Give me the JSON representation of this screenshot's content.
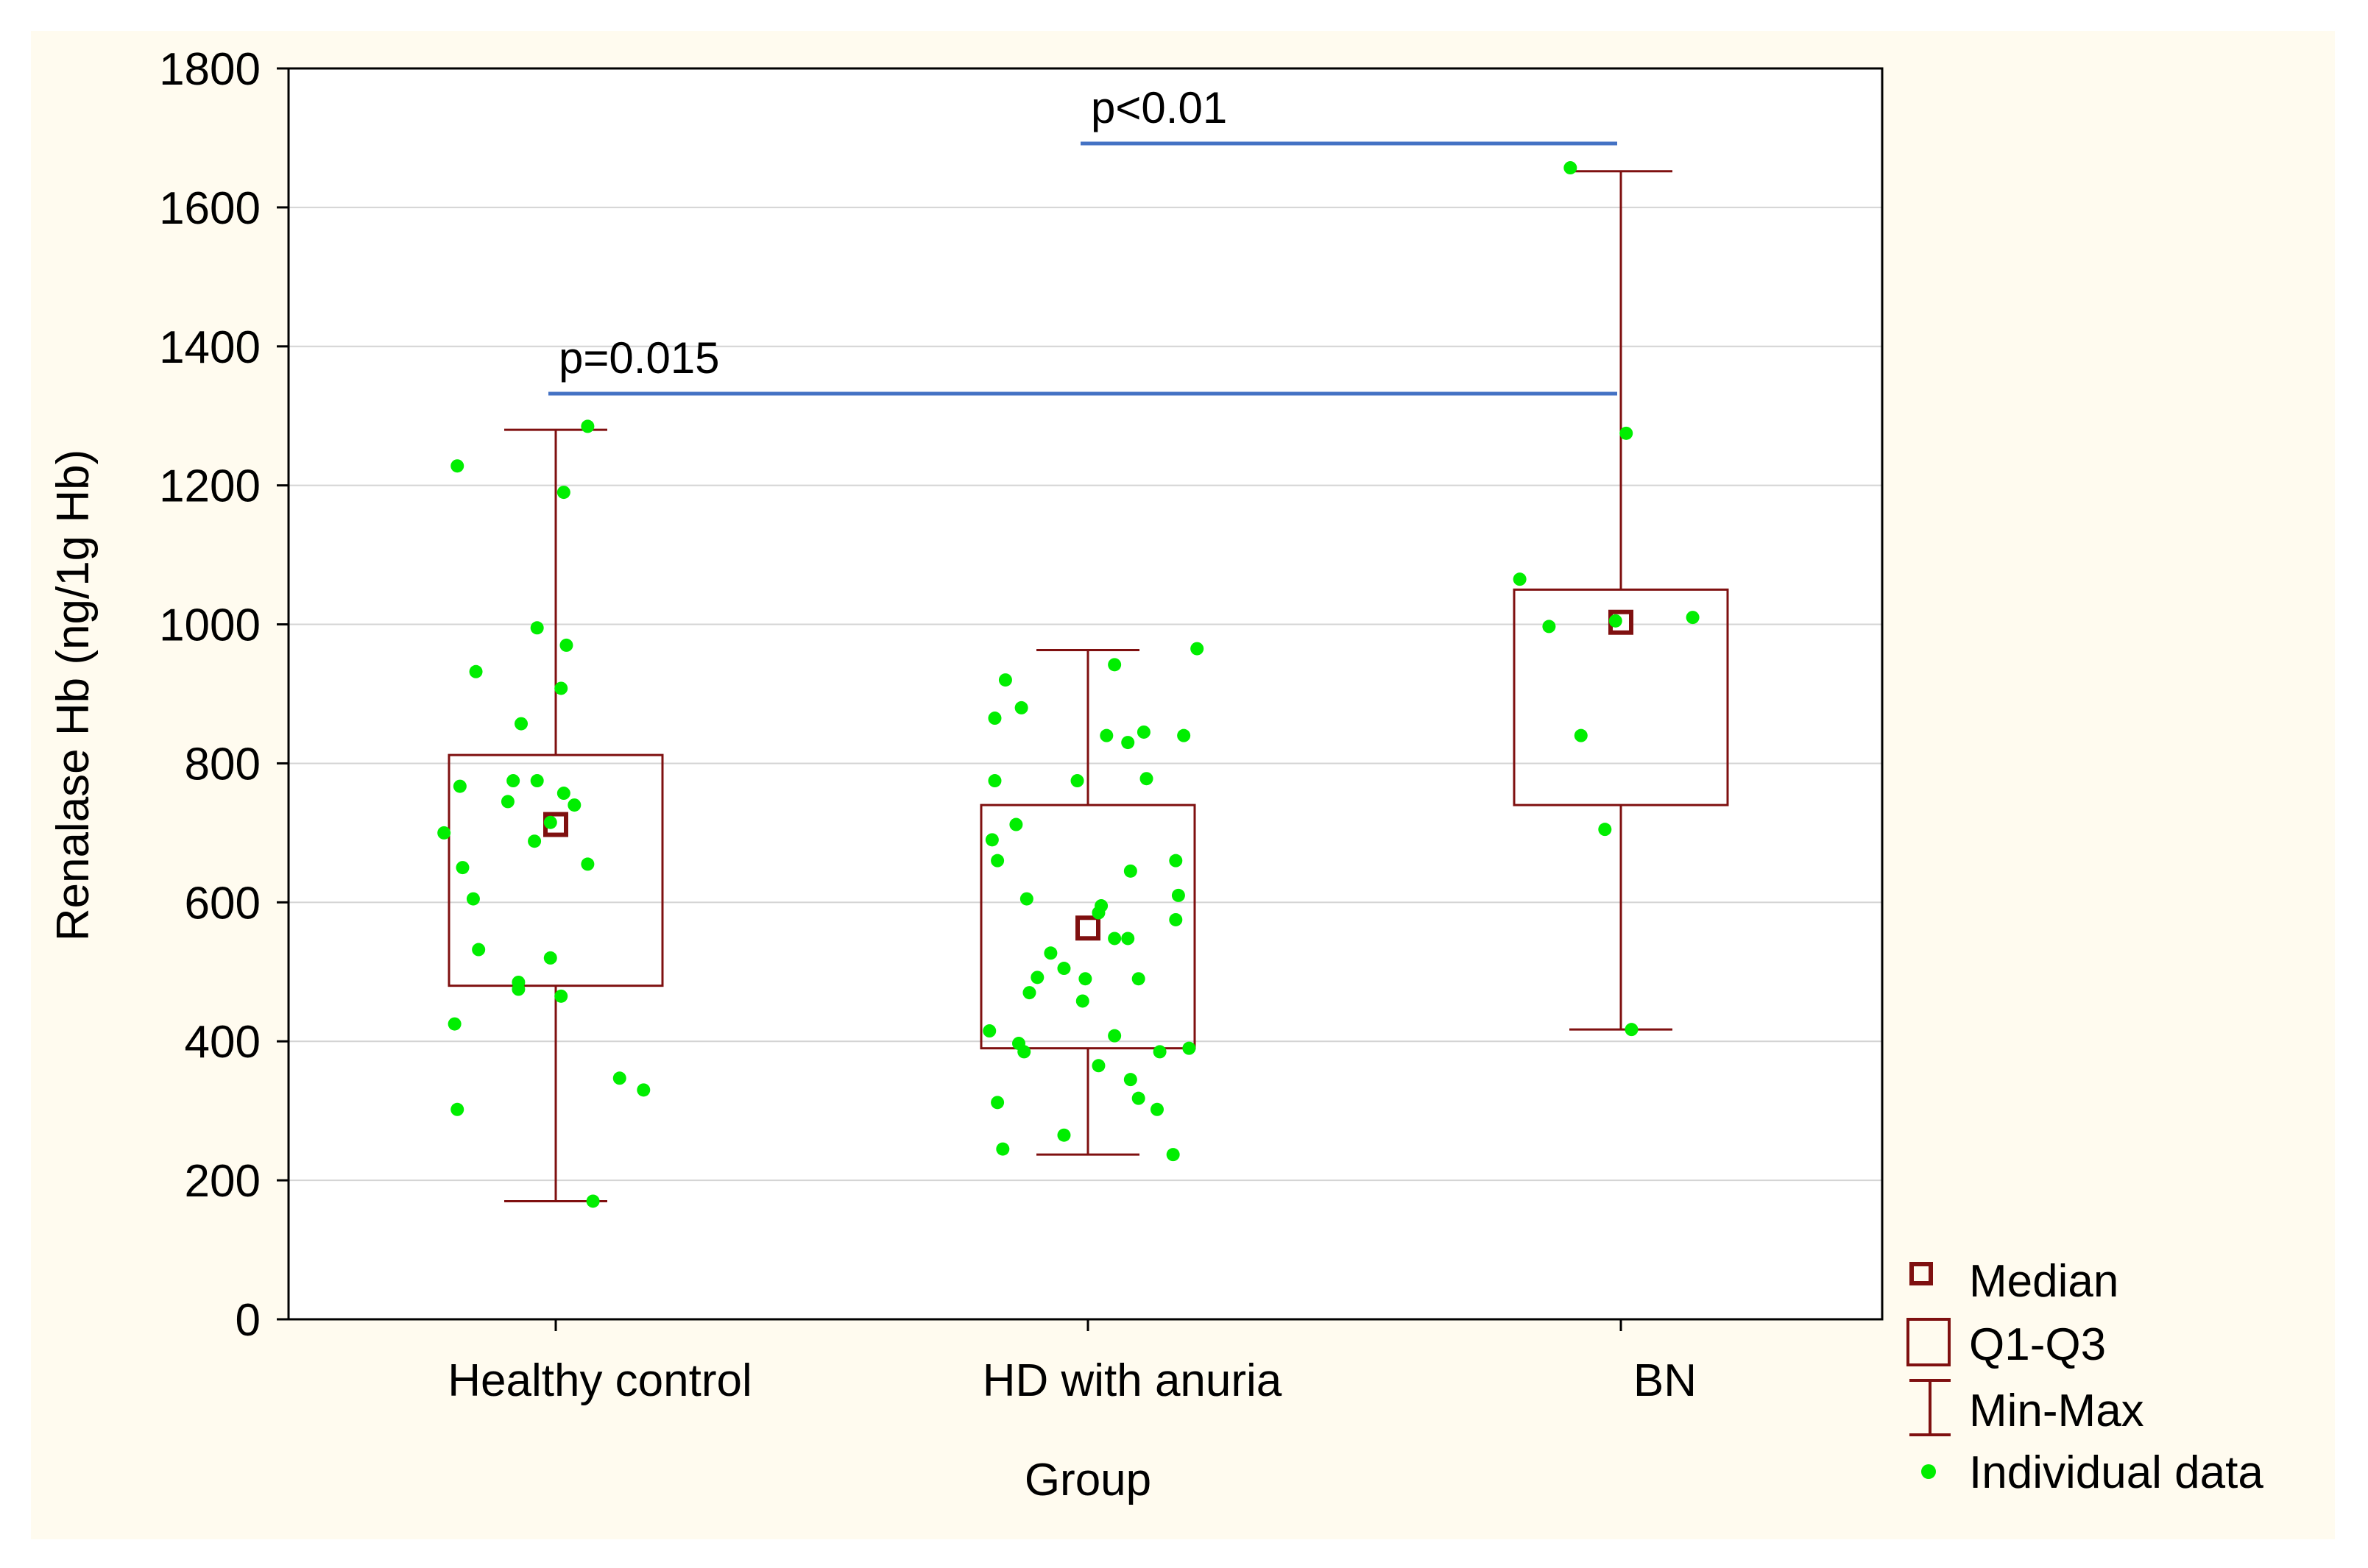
{
  "chart_data": {
    "type": "box",
    "xlabel": "Group",
    "ylabel": "Renalase Hb (ng/1g Hb)",
    "ylim": [
      0,
      1800
    ],
    "yticks": [
      0,
      200,
      400,
      600,
      800,
      1000,
      1200,
      1400,
      1600,
      1800
    ],
    "grid": true,
    "categories": [
      "Healthy control",
      "HD with anuria",
      "BN"
    ],
    "boxes": [
      {
        "group": "Healthy control",
        "min": 170,
        "q1": 480,
        "median": 712,
        "q3": 812,
        "max": 1280
      },
      {
        "group": "HD with anuria",
        "min": 237,
        "q1": 390,
        "median": 563,
        "q3": 740,
        "max": 963
      },
      {
        "group": "BN",
        "min": 417,
        "q1": 740,
        "median": 1003,
        "q3": 1050,
        "max": 1652
      }
    ],
    "points": [
      {
        "group": 0,
        "offset": -0.37,
        "value": 1228
      },
      {
        "group": 0,
        "offset": 0.12,
        "value": 1285
      },
      {
        "group": 0,
        "offset": 0.03,
        "value": 1190
      },
      {
        "group": 0,
        "offset": -0.3,
        "value": 932
      },
      {
        "group": 0,
        "offset": -0.07,
        "value": 995
      },
      {
        "group": 0,
        "offset": 0.04,
        "value": 970
      },
      {
        "group": 0,
        "offset": 0.02,
        "value": 908
      },
      {
        "group": 0,
        "offset": -0.13,
        "value": 857
      },
      {
        "group": 0,
        "offset": -0.36,
        "value": 767
      },
      {
        "group": 0,
        "offset": -0.16,
        "value": 775
      },
      {
        "group": 0,
        "offset": -0.07,
        "value": 775
      },
      {
        "group": 0,
        "offset": 0.03,
        "value": 757
      },
      {
        "group": 0,
        "offset": -0.18,
        "value": 745
      },
      {
        "group": 0,
        "offset": 0.07,
        "value": 740
      },
      {
        "group": 0,
        "offset": -0.02,
        "value": 715
      },
      {
        "group": 0,
        "offset": -0.42,
        "value": 700
      },
      {
        "group": 0,
        "offset": -0.08,
        "value": 688
      },
      {
        "group": 0,
        "offset": 0.12,
        "value": 655
      },
      {
        "group": 0,
        "offset": -0.35,
        "value": 650
      },
      {
        "group": 0,
        "offset": -0.31,
        "value": 605
      },
      {
        "group": 0,
        "offset": -0.29,
        "value": 532
      },
      {
        "group": 0,
        "offset": -0.02,
        "value": 520
      },
      {
        "group": 0,
        "offset": -0.14,
        "value": 485
      },
      {
        "group": 0,
        "offset": -0.14,
        "value": 475
      },
      {
        "group": 0,
        "offset": 0.02,
        "value": 465
      },
      {
        "group": 0,
        "offset": -0.38,
        "value": 425
      },
      {
        "group": 0,
        "offset": 0.24,
        "value": 347
      },
      {
        "group": 0,
        "offset": 0.33,
        "value": 330
      },
      {
        "group": 0,
        "offset": -0.37,
        "value": 302
      },
      {
        "group": 0,
        "offset": 0.14,
        "value": 170
      },
      {
        "group": 1,
        "offset": -0.31,
        "value": 920
      },
      {
        "group": 1,
        "offset": 0.1,
        "value": 942
      },
      {
        "group": 1,
        "offset": 0.41,
        "value": 965
      },
      {
        "group": 1,
        "offset": -0.25,
        "value": 880
      },
      {
        "group": 1,
        "offset": -0.35,
        "value": 865
      },
      {
        "group": 1,
        "offset": 0.21,
        "value": 845
      },
      {
        "group": 1,
        "offset": 0.36,
        "value": 840
      },
      {
        "group": 1,
        "offset": 0.07,
        "value": 840
      },
      {
        "group": 1,
        "offset": 0.15,
        "value": 830
      },
      {
        "group": 1,
        "offset": -0.35,
        "value": 775
      },
      {
        "group": 1,
        "offset": -0.04,
        "value": 775
      },
      {
        "group": 1,
        "offset": 0.22,
        "value": 778
      },
      {
        "group": 1,
        "offset": -0.27,
        "value": 712
      },
      {
        "group": 1,
        "offset": -0.36,
        "value": 690
      },
      {
        "group": 1,
        "offset": -0.34,
        "value": 660
      },
      {
        "group": 1,
        "offset": 0.33,
        "value": 660
      },
      {
        "group": 1,
        "offset": 0.16,
        "value": 645
      },
      {
        "group": 1,
        "offset": 0.34,
        "value": 610
      },
      {
        "group": 1,
        "offset": -0.23,
        "value": 605
      },
      {
        "group": 1,
        "offset": 0.05,
        "value": 595
      },
      {
        "group": 1,
        "offset": 0.04,
        "value": 585
      },
      {
        "group": 1,
        "offset": 0.33,
        "value": 575
      },
      {
        "group": 1,
        "offset": 0.1,
        "value": 548
      },
      {
        "group": 1,
        "offset": 0.15,
        "value": 548
      },
      {
        "group": 1,
        "offset": -0.14,
        "value": 527
      },
      {
        "group": 1,
        "offset": -0.09,
        "value": 505
      },
      {
        "group": 1,
        "offset": -0.19,
        "value": 492
      },
      {
        "group": 1,
        "offset": -0.01,
        "value": 490
      },
      {
        "group": 1,
        "offset": 0.19,
        "value": 490
      },
      {
        "group": 1,
        "offset": -0.22,
        "value": 470
      },
      {
        "group": 1,
        "offset": -0.02,
        "value": 458
      },
      {
        "group": 1,
        "offset": -0.37,
        "value": 415
      },
      {
        "group": 1,
        "offset": 0.1,
        "value": 408
      },
      {
        "group": 1,
        "offset": -0.26,
        "value": 397
      },
      {
        "group": 1,
        "offset": -0.24,
        "value": 385
      },
      {
        "group": 1,
        "offset": 0.27,
        "value": 385
      },
      {
        "group": 1,
        "offset": 0.38,
        "value": 390
      },
      {
        "group": 1,
        "offset": 0.04,
        "value": 365
      },
      {
        "group": 1,
        "offset": 0.16,
        "value": 345
      },
      {
        "group": 1,
        "offset": 0.19,
        "value": 318
      },
      {
        "group": 1,
        "offset": -0.34,
        "value": 312
      },
      {
        "group": 1,
        "offset": 0.26,
        "value": 302
      },
      {
        "group": 1,
        "offset": -0.09,
        "value": 265
      },
      {
        "group": 1,
        "offset": -0.32,
        "value": 245
      },
      {
        "group": 1,
        "offset": 0.32,
        "value": 237
      },
      {
        "group": 2,
        "offset": -0.19,
        "value": 1657
      },
      {
        "group": 2,
        "offset": 0.02,
        "value": 1275
      },
      {
        "group": 2,
        "offset": -0.38,
        "value": 1065
      },
      {
        "group": 2,
        "offset": -0.27,
        "value": 997
      },
      {
        "group": 2,
        "offset": -0.02,
        "value": 1005
      },
      {
        "group": 2,
        "offset": 0.27,
        "value": 1010
      },
      {
        "group": 2,
        "offset": -0.15,
        "value": 840
      },
      {
        "group": 2,
        "offset": -0.06,
        "value": 705
      },
      {
        "group": 2,
        "offset": 0.04,
        "value": 417
      }
    ],
    "significance": [
      {
        "from": 0,
        "to": 2,
        "value": 1332,
        "label": "p=0.015"
      },
      {
        "from": 1,
        "to": 2,
        "value": 1692,
        "label": "p<0.01"
      }
    ],
    "legend": {
      "position": "bottom-right",
      "entries": [
        "Median",
        "Q1-Q3",
        "Min-Max",
        "Individual data"
      ]
    },
    "colors": {
      "box": "#7f1010",
      "points": "#00ee00",
      "bars": "#4472c4",
      "background": "#fffbef",
      "grid": "#d4d4d4"
    }
  }
}
